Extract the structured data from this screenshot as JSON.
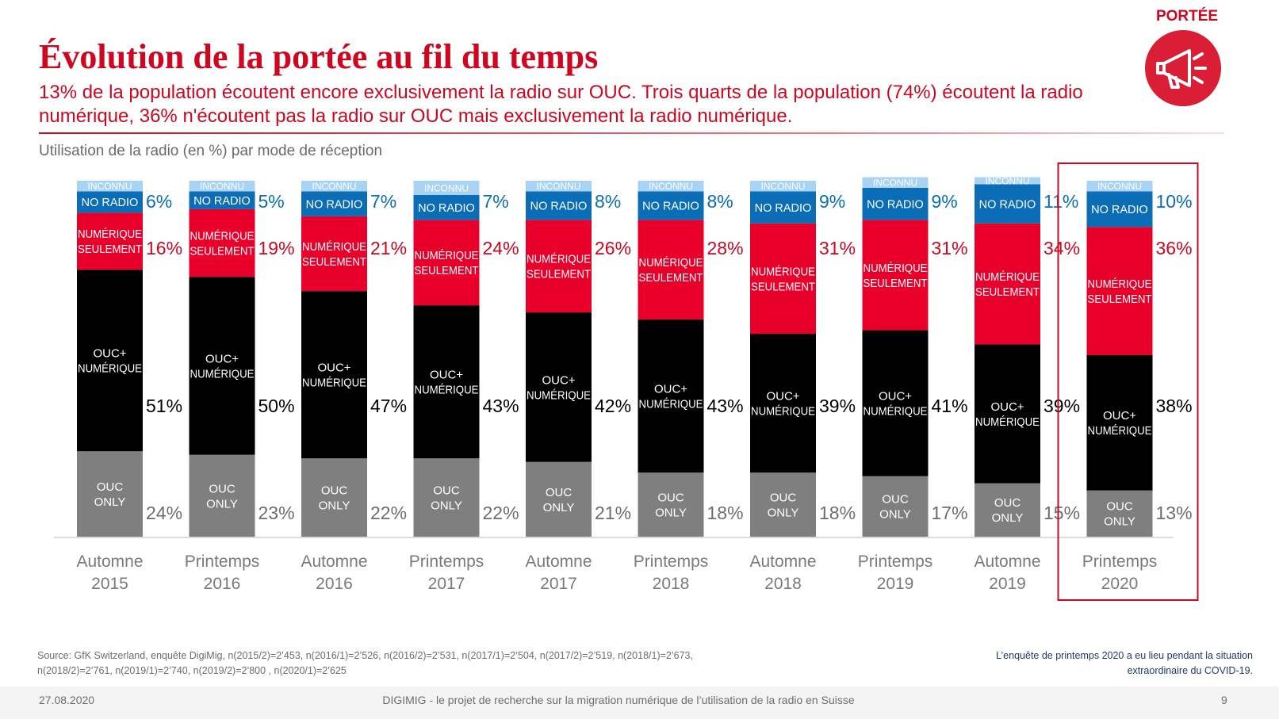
{
  "header": {
    "title": "Évolution de la portée au fil du temps",
    "subtitle": "13% de la population écoutent encore exclusivement la radio sur OUC. Trois quarts de la population (74%) écoutent la radio numérique, 36% n'écoutent pas la radio sur OUC mais exclusivement la radio numérique.",
    "badge_label": "PORTÉE",
    "badge_icon": "megaphone-icon"
  },
  "colors": {
    "accent": "#d0051f",
    "inconnu": "#a9d3f2",
    "no_radio": "#0a6db5",
    "numerique_seulement": "#e8002a",
    "ouc_numerique": "#000000",
    "ouc_only": "#7f7f7f",
    "highlight": "#d0051f"
  },
  "chart_data": {
    "type": "bar",
    "stacked": true,
    "title": "Utilisation de la radio (en %) par mode de réception",
    "categories": [
      [
        "Automne",
        "2015"
      ],
      [
        "Printemps",
        "2016"
      ],
      [
        "Automne",
        "2016"
      ],
      [
        "Printemps",
        "2017"
      ],
      [
        "Automne",
        "2017"
      ],
      [
        "Printemps",
        "2018"
      ],
      [
        "Automne",
        "2018"
      ],
      [
        "Printemps",
        "2019"
      ],
      [
        "Automne",
        "2019"
      ],
      [
        "Printemps",
        "2020"
      ]
    ],
    "highlight_category": 9,
    "series": [
      {
        "key": "ouc_only",
        "label_lines": [
          "OUC",
          "ONLY"
        ],
        "values": [
          24,
          23,
          22,
          22,
          21,
          18,
          18,
          17,
          15,
          13
        ]
      },
      {
        "key": "ouc_numerique",
        "label_lines": [
          "OUC+",
          "NUMÉRIQUE"
        ],
        "values": [
          51,
          50,
          47,
          43,
          42,
          43,
          39,
          41,
          39,
          38
        ]
      },
      {
        "key": "numerique_seulement",
        "label_lines": [
          "NUMÉRIQUE",
          "SEULEMENT"
        ],
        "values": [
          16,
          19,
          21,
          24,
          26,
          28,
          31,
          31,
          34,
          36
        ]
      },
      {
        "key": "no_radio",
        "label_lines": [
          "NO RADIO"
        ],
        "values": [
          6,
          5,
          7,
          7,
          8,
          8,
          9,
          9,
          11,
          10
        ]
      },
      {
        "key": "inconnu",
        "label_lines": [
          "INCONNU"
        ],
        "values": [
          3,
          3,
          3,
          4,
          3,
          3,
          3,
          3,
          2,
          3
        ]
      }
    ],
    "value_suffix": "%",
    "ylim": [
      0,
      100
    ],
    "grid": false,
    "legend": "none"
  },
  "footer": {
    "source": "Source: GfK Switzerland, enquête DigiMig, n(2015/2)=2’453, n(2016/1)=2’526, n(2016/2)=2’531, n(2017/1)=2’504, n(2017/2)=2’519, n(2018/1)=2’673, n(2018/2)=2’761, n(2019/1)=2’740, n(2019/2)=2’800 , n(2020/1)=2’625",
    "note": "L’enquête de printemps 2020 a eu lieu pendant la situation extraordinaire du COVID-19.",
    "date": "27.08.2020",
    "project": "DIGIMIG - le projet de recherche sur la migration numérique de l’utilisation de la radio en Suisse",
    "page": "9"
  }
}
